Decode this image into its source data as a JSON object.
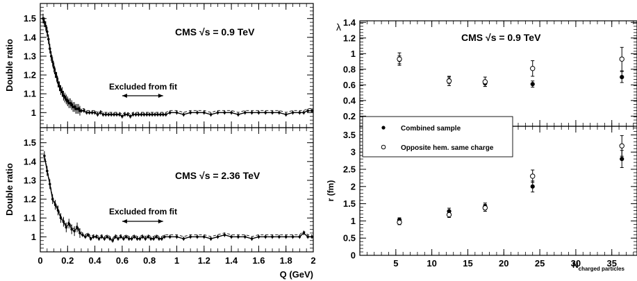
{
  "chart_data": [
    {
      "id": "dr_top",
      "type": "scatter",
      "ylabel": "Double ratio",
      "annotation": "CMS √s = 0.9 TeV",
      "annotation_prefix": "CMS ",
      "annotation_root": "√",
      "annotation_suffix": "s = 0.9 TeV",
      "excluded_label": "Excluded from fit",
      "excluded_range": [
        0.6,
        0.9
      ],
      "xlim": [
        0,
        2
      ],
      "ylim": [
        0.92,
        1.58
      ],
      "yticks": [
        1,
        1.1,
        1.2,
        1.3,
        1.4,
        1.5
      ],
      "ytick_labels": [
        "1",
        "1.1",
        "1.2",
        "1.3",
        "1.4",
        "1.5"
      ],
      "points": [
        [
          0.02,
          1.5
        ],
        [
          0.03,
          1.48
        ],
        [
          0.04,
          1.46
        ],
        [
          0.05,
          1.43
        ],
        [
          0.06,
          1.39
        ],
        [
          0.07,
          1.34
        ],
        [
          0.08,
          1.3
        ],
        [
          0.09,
          1.27
        ],
        [
          0.1,
          1.24
        ],
        [
          0.11,
          1.21
        ],
        [
          0.12,
          1.19
        ],
        [
          0.13,
          1.16
        ],
        [
          0.14,
          1.14
        ],
        [
          0.15,
          1.12
        ],
        [
          0.16,
          1.11
        ],
        [
          0.17,
          1.09
        ],
        [
          0.18,
          1.08
        ],
        [
          0.19,
          1.07
        ],
        [
          0.2,
          1.06
        ],
        [
          0.21,
          1.05
        ],
        [
          0.22,
          1.05
        ],
        [
          0.23,
          1.04
        ],
        [
          0.24,
          1.03
        ],
        [
          0.25,
          1.03
        ],
        [
          0.26,
          1.02
        ],
        [
          0.27,
          1.02
        ],
        [
          0.28,
          1.02
        ],
        [
          0.29,
          1.01
        ],
        [
          0.3,
          1.01
        ],
        [
          0.32,
          1.01
        ],
        [
          0.34,
          1.0
        ],
        [
          0.36,
          1.0
        ],
        [
          0.38,
          1.0
        ],
        [
          0.4,
          1.0
        ],
        [
          0.42,
          0.99
        ],
        [
          0.44,
          1.0
        ],
        [
          0.46,
          0.99
        ],
        [
          0.48,
          0.99
        ],
        [
          0.5,
          0.99
        ],
        [
          0.52,
          0.99
        ],
        [
          0.54,
          0.99
        ],
        [
          0.56,
          0.99
        ],
        [
          0.58,
          0.99
        ],
        [
          0.6,
          0.98
        ],
        [
          0.62,
          0.99
        ],
        [
          0.64,
          0.99
        ],
        [
          0.66,
          0.98
        ],
        [
          0.68,
          0.99
        ],
        [
          0.7,
          0.99
        ],
        [
          0.72,
          0.99
        ],
        [
          0.74,
          0.99
        ],
        [
          0.76,
          0.99
        ],
        [
          0.78,
          0.99
        ],
        [
          0.8,
          0.99
        ],
        [
          0.82,
          0.99
        ],
        [
          0.84,
          0.99
        ],
        [
          0.86,
          0.99
        ],
        [
          0.88,
          0.99
        ],
        [
          0.9,
          0.99
        ],
        [
          0.92,
          0.99
        ],
        [
          0.95,
          1.0
        ],
        [
          1.0,
          1.0
        ],
        [
          1.05,
          0.99
        ],
        [
          1.1,
          1.0
        ],
        [
          1.15,
          1.0
        ],
        [
          1.2,
          1.0
        ],
        [
          1.25,
          0.99
        ],
        [
          1.3,
          1.0
        ],
        [
          1.35,
          1.0
        ],
        [
          1.4,
          1.0
        ],
        [
          1.45,
          0.99
        ],
        [
          1.5,
          1.0
        ],
        [
          1.55,
          1.0
        ],
        [
          1.6,
          1.0
        ],
        [
          1.65,
          1.0
        ],
        [
          1.7,
          1.0
        ],
        [
          1.75,
          1.0
        ],
        [
          1.8,
          0.99
        ],
        [
          1.85,
          1.0
        ],
        [
          1.9,
          1.0
        ],
        [
          1.93,
          1.0
        ],
        [
          1.96,
          1.01
        ],
        [
          1.99,
          1.01
        ]
      ]
    },
    {
      "id": "dr_bottom",
      "type": "scatter",
      "ylabel": "Double ratio",
      "annotation": "CMS √s = 2.36 TeV",
      "annotation_prefix": "CMS ",
      "annotation_root": "√",
      "annotation_suffix": "s = 2.36 TeV",
      "excluded_label": "Excluded from fit",
      "excluded_range": [
        0.6,
        0.9
      ],
      "xlabel": "Q (GeV)",
      "xlim": [
        0,
        2
      ],
      "ylim": [
        0.92,
        1.58
      ],
      "xticks": [
        0,
        0.2,
        0.4,
        0.6,
        0.8,
        1,
        1.2,
        1.4,
        1.6,
        1.8,
        2
      ],
      "xtick_labels": [
        "0",
        "0.2",
        "0.4",
        "0.6",
        "0.8",
        "1",
        "1.2",
        "1.4",
        "1.6",
        "1.8",
        "2"
      ],
      "yticks": [
        1,
        1.1,
        1.2,
        1.3,
        1.4,
        1.5
      ],
      "ytick_labels": [
        "1",
        "1.1",
        "1.2",
        "1.3",
        "1.4",
        "1.5"
      ],
      "points": [
        [
          0.03,
          1.43
        ],
        [
          0.05,
          1.35
        ],
        [
          0.07,
          1.28
        ],
        [
          0.09,
          1.2
        ],
        [
          0.11,
          1.17
        ],
        [
          0.13,
          1.14
        ],
        [
          0.15,
          1.1
        ],
        [
          0.17,
          1.08
        ],
        [
          0.19,
          1.05
        ],
        [
          0.21,
          1.07
        ],
        [
          0.23,
          1.04
        ],
        [
          0.25,
          1.03
        ],
        [
          0.27,
          1.05
        ],
        [
          0.29,
          1.02
        ],
        [
          0.31,
          1.01
        ],
        [
          0.33,
          1.0
        ],
        [
          0.35,
          1.01
        ],
        [
          0.37,
          0.99
        ],
        [
          0.39,
          1.0
        ],
        [
          0.41,
          1.0
        ],
        [
          0.43,
          0.99
        ],
        [
          0.45,
          1.0
        ],
        [
          0.47,
          0.99
        ],
        [
          0.49,
          1.0
        ],
        [
          0.51,
          0.99
        ],
        [
          0.53,
          0.98
        ],
        [
          0.55,
          1.0
        ],
        [
          0.57,
          0.99
        ],
        [
          0.59,
          1.0
        ],
        [
          0.61,
          0.99
        ],
        [
          0.63,
          1.0
        ],
        [
          0.65,
          0.99
        ],
        [
          0.67,
          0.99
        ],
        [
          0.69,
          1.0
        ],
        [
          0.71,
          0.99
        ],
        [
          0.73,
          0.99
        ],
        [
          0.75,
          1.0
        ],
        [
          0.77,
          0.99
        ],
        [
          0.79,
          1.0
        ],
        [
          0.81,
          0.99
        ],
        [
          0.83,
          0.99
        ],
        [
          0.85,
          1.0
        ],
        [
          0.87,
          0.99
        ],
        [
          0.89,
          0.99
        ],
        [
          0.91,
          1.0
        ],
        [
          0.95,
          1.0
        ],
        [
          1.0,
          1.0
        ],
        [
          1.05,
          0.99
        ],
        [
          1.1,
          1.0
        ],
        [
          1.15,
          1.0
        ],
        [
          1.2,
          1.0
        ],
        [
          1.25,
          0.99
        ],
        [
          1.3,
          1.0
        ],
        [
          1.35,
          1.01
        ],
        [
          1.4,
          1.0
        ],
        [
          1.45,
          1.0
        ],
        [
          1.5,
          1.0
        ],
        [
          1.55,
          0.99
        ],
        [
          1.6,
          1.0
        ],
        [
          1.65,
          1.0
        ],
        [
          1.7,
          1.0
        ],
        [
          1.75,
          1.0
        ],
        [
          1.8,
          1.0
        ],
        [
          1.85,
          1.0
        ],
        [
          1.9,
          1.0
        ],
        [
          1.93,
          1.02
        ],
        [
          1.96,
          1.0
        ],
        [
          1.99,
          1.0
        ]
      ]
    },
    {
      "id": "lambda",
      "type": "scatter",
      "ylabel": "λ",
      "annotation": "CMS √s = 0.9  TeV",
      "annotation_prefix": "CMS ",
      "annotation_root": "√",
      "annotation_suffix": "s = 0.9  TeV",
      "xlim": [
        0,
        38.5
      ],
      "ylim": [
        0.07,
        1.42
      ],
      "yticks": [
        0.2,
        0.4,
        0.6,
        0.8,
        1,
        1.2,
        1.4
      ],
      "ytick_labels": [
        "0.2",
        "0.4",
        "0.6",
        "0.8",
        "1",
        "1.2",
        "1.4"
      ],
      "series": [
        {
          "name": "Combined sample",
          "marker": "filled",
          "x": [
            5.5,
            12.4,
            17.4,
            24.0,
            36.4
          ],
          "y": [
            0.92,
            0.66,
            0.62,
            0.61,
            0.7
          ],
          "err": [
            0.05,
            0.04,
            0.04,
            0.04,
            0.07
          ]
        },
        {
          "name": "Opposite hem. same charge",
          "marker": "open",
          "x": [
            5.5,
            12.4,
            17.4,
            24.0,
            36.4
          ],
          "y": [
            0.93,
            0.65,
            0.64,
            0.81,
            0.93
          ],
          "err": [
            0.08,
            0.06,
            0.06,
            0.1,
            0.15
          ]
        }
      ]
    },
    {
      "id": "radius",
      "type": "scatter",
      "ylabel": "r (fm)",
      "xlabel": "N",
      "xlabel_sub": "charged particles",
      "xlim": [
        0,
        38.5
      ],
      "ylim": [
        0,
        3.75
      ],
      "xticks": [
        5,
        10,
        15,
        20,
        25,
        30,
        35
      ],
      "xtick_labels": [
        "5",
        "10",
        "15",
        "20",
        "25",
        "30",
        "35"
      ],
      "yticks": [
        0,
        0.5,
        1,
        1.5,
        2,
        2.5,
        3,
        3.5
      ],
      "ytick_labels": [
        "0",
        "0.5",
        "1",
        "1.5",
        "2",
        "2.5",
        "3",
        "3.5"
      ],
      "series": [
        {
          "name": "Combined sample",
          "marker": "filled",
          "x": [
            5.5,
            12.4,
            17.4,
            24.0,
            36.4
          ],
          "y": [
            1.03,
            1.28,
            1.42,
            2.0,
            2.8
          ],
          "err": [
            0.06,
            0.09,
            0.1,
            0.16,
            0.25
          ]
        },
        {
          "name": "Opposite hem. same charge",
          "marker": "open",
          "x": [
            5.5,
            12.4,
            17.4,
            24.0,
            36.4
          ],
          "y": [
            0.96,
            1.18,
            1.38,
            2.3,
            3.18
          ],
          "err": [
            0.07,
            0.08,
            0.1,
            0.18,
            0.3
          ]
        }
      ]
    }
  ],
  "legend": {
    "items": [
      {
        "label": "Combined sample",
        "marker": "filled"
      },
      {
        "label": "Opposite hem. same charge",
        "marker": "open"
      }
    ]
  }
}
